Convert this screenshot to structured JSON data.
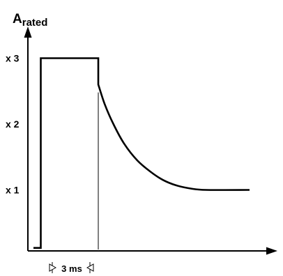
{
  "chart_data": {
    "type": "line",
    "title": "",
    "ylabel": {
      "main": "A",
      "subscript": "rated"
    },
    "xlabel": "",
    "y_ticks": [
      {
        "value": 3,
        "label": "x 3"
      },
      {
        "value": 2,
        "label": "x 2"
      },
      {
        "value": 1,
        "label": "x 1"
      }
    ],
    "ylim": [
      0,
      3.8
    ],
    "duration_marker": {
      "label": "3 ms"
    },
    "series": [
      {
        "points": [
          {
            "t": 0.0,
            "y": 0.12
          },
          {
            "t": 0.34,
            "y": 0.12
          },
          {
            "t": 0.34,
            "y": 3.0
          },
          {
            "t": 3.0,
            "y": 3.0
          },
          {
            "t": 3.0,
            "y": 2.6
          },
          {
            "t": 3.3,
            "y": 2.3
          },
          {
            "t": 3.7,
            "y": 2.0
          },
          {
            "t": 4.2,
            "y": 1.7
          },
          {
            "t": 4.8,
            "y": 1.45
          },
          {
            "t": 5.4,
            "y": 1.28
          },
          {
            "t": 6.0,
            "y": 1.15
          },
          {
            "t": 6.6,
            "y": 1.07
          },
          {
            "t": 7.3,
            "y": 1.02
          },
          {
            "t": 8.0,
            "y": 1.0
          },
          {
            "t": 10.0,
            "y": 1.0
          }
        ]
      }
    ],
    "marker_line": {
      "t": 3.0,
      "y_top": 2.48
    }
  }
}
